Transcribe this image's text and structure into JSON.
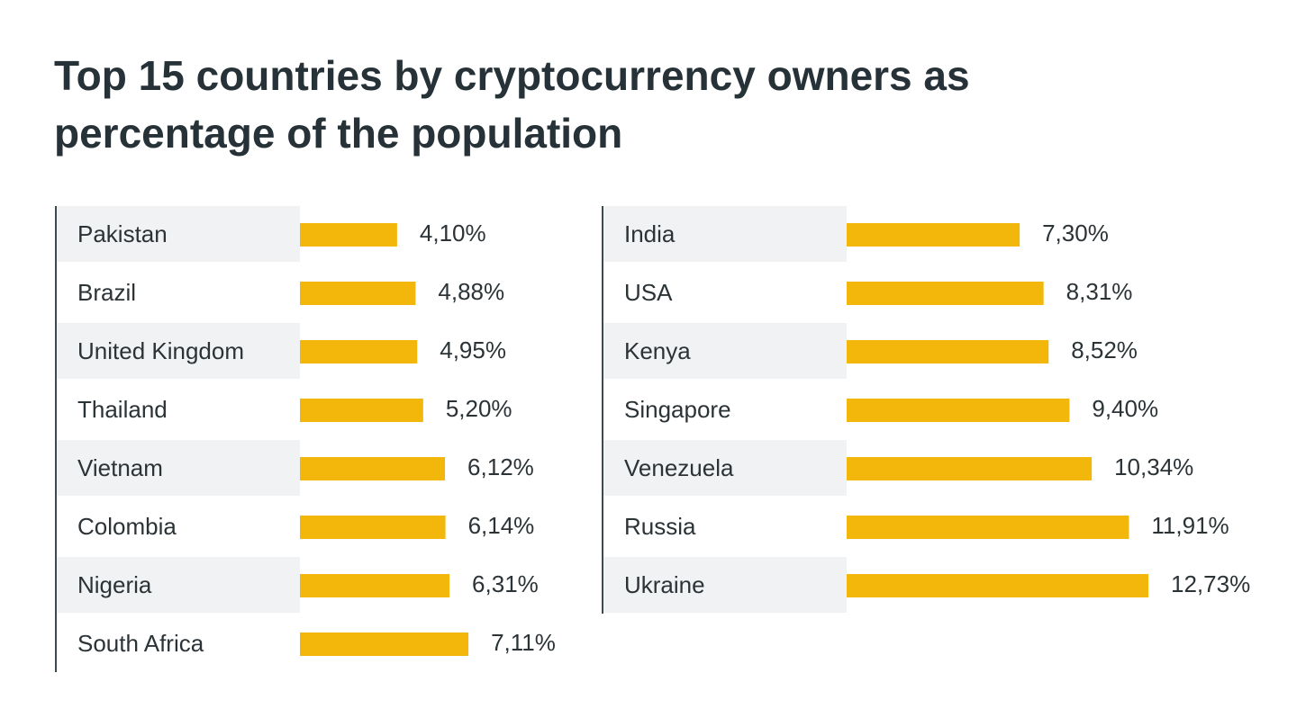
{
  "chart_data": {
    "type": "bar",
    "orientation": "horizontal",
    "title": "Top 15 countries by cryptocurrency owners as percentage of the population",
    "categories": [
      "Pakistan",
      "Brazil",
      "United Kingdom",
      "Thailand",
      "Vietnam",
      "Colombia",
      "Nigeria",
      "South Africa",
      "India",
      "USA",
      "Kenya",
      "Singapore",
      "Venezuela",
      "Russia",
      "Ukraine"
    ],
    "values": [
      4.1,
      4.88,
      4.95,
      5.2,
      6.12,
      6.14,
      6.31,
      7.11,
      7.3,
      8.31,
      8.52,
      9.4,
      10.34,
      11.91,
      12.73
    ],
    "value_labels": [
      "4,10%",
      "4,88%",
      "4,95%",
      "5,20%",
      "6,12%",
      "6,14%",
      "6,31%",
      "7,11%",
      "7,30%",
      "8,31%",
      "8,52%",
      "9,40%",
      "10,34%",
      "11,91%",
      "12,73%"
    ],
    "color": "#f3b70c"
  }
}
